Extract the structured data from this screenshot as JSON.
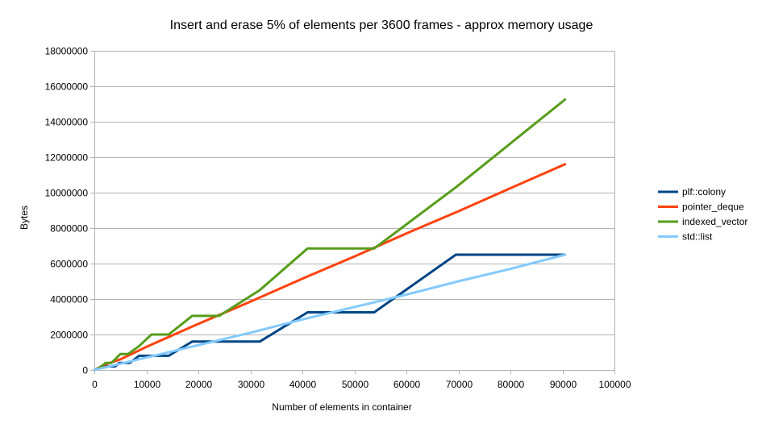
{
  "chart_data": {
    "type": "line",
    "title": "Insert and erase 5% of elements per 3600 frames - approx memory usage",
    "xlabel": "Number of elements in container",
    "ylabel": "Bytes",
    "xlim": [
      0,
      100000
    ],
    "ylim": [
      0,
      18000000
    ],
    "x_ticks": [
      0,
      10000,
      20000,
      30000,
      40000,
      50000,
      60000,
      70000,
      80000,
      90000,
      100000
    ],
    "y_ticks": [
      0,
      2000000,
      4000000,
      6000000,
      8000000,
      10000000,
      12000000,
      14000000,
      16000000,
      18000000
    ],
    "x_tick_labels": [
      "0",
      "10000",
      "20000",
      "30000",
      "40000",
      "50000",
      "60000",
      "70000",
      "80000",
      "90000",
      "100000"
    ],
    "y_tick_labels": [
      "0",
      "2000000",
      "4000000",
      "6000000",
      "8000000",
      "10000000",
      "12000000",
      "14000000",
      "16000000",
      "18000000"
    ],
    "grid": "horizontal",
    "legend_position": "right",
    "series": [
      {
        "name": "plf::colony",
        "color": "#004586",
        "points": [
          [
            0,
            0
          ],
          [
            1100,
            100000
          ],
          [
            2000,
            200000
          ],
          [
            4000,
            200000
          ],
          [
            4800,
            400000
          ],
          [
            6800,
            400000
          ],
          [
            8600,
            800000
          ],
          [
            10500,
            800000
          ],
          [
            14300,
            800000
          ],
          [
            18800,
            1600000
          ],
          [
            24000,
            1600000
          ],
          [
            31800,
            1600000
          ],
          [
            41000,
            3250000
          ],
          [
            47000,
            3250000
          ],
          [
            53800,
            3250000
          ],
          [
            69500,
            6500000
          ],
          [
            90500,
            6500000
          ]
        ]
      },
      {
        "name": "pointer_deque",
        "color": "#ff420e",
        "points": [
          [
            0,
            0
          ],
          [
            2000,
            300000
          ],
          [
            5000,
            600000
          ],
          [
            10000,
            1300000
          ],
          [
            20000,
            2600000
          ],
          [
            30000,
            3850000
          ],
          [
            40000,
            5150000
          ],
          [
            50000,
            6400000
          ],
          [
            60000,
            7700000
          ],
          [
            70000,
            8950000
          ],
          [
            80000,
            10250000
          ],
          [
            90500,
            11600000
          ]
        ]
      },
      {
        "name": "indexed_vector",
        "color": "#579d1c",
        "points": [
          [
            0,
            0
          ],
          [
            1100,
            150000
          ],
          [
            2200,
            400000
          ],
          [
            3300,
            400000
          ],
          [
            5000,
            900000
          ],
          [
            6500,
            900000
          ],
          [
            8600,
            1350000
          ],
          [
            11000,
            2000000
          ],
          [
            14300,
            2000000
          ],
          [
            18800,
            3050000
          ],
          [
            24000,
            3050000
          ],
          [
            31800,
            4500000
          ],
          [
            41000,
            6850000
          ],
          [
            53800,
            6850000
          ],
          [
            69500,
            10300000
          ],
          [
            90500,
            15250000
          ]
        ]
      },
      {
        "name": "std::list",
        "color": "#83caff",
        "points": [
          [
            0,
            0
          ],
          [
            10000,
            700000
          ],
          [
            20000,
            1400000
          ],
          [
            30000,
            2100000
          ],
          [
            40000,
            2850000
          ],
          [
            50000,
            3550000
          ],
          [
            60000,
            4250000
          ],
          [
            70000,
            5000000
          ],
          [
            80000,
            5700000
          ],
          [
            90500,
            6500000
          ]
        ]
      }
    ]
  }
}
